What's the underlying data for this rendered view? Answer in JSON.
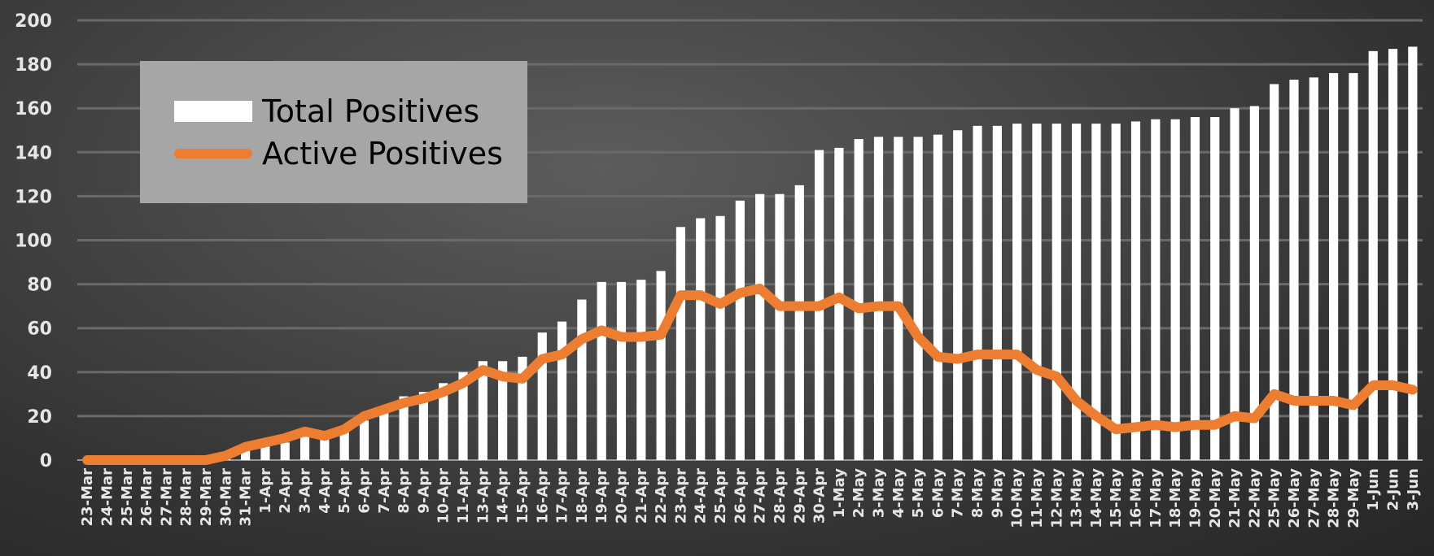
{
  "chart_data": {
    "type": "bar",
    "categories": [
      "23-Mar",
      "24-Mar",
      "25-Mar",
      "26-Mar",
      "27-Mar",
      "28-Mar",
      "29-Mar",
      "30-Mar",
      "31-Mar",
      "1-Apr",
      "2-Apr",
      "3-Apr",
      "4-Apr",
      "5-Apr",
      "6-Apr",
      "7-Apr",
      "8-Apr",
      "9-Apr",
      "10-Apr",
      "11-Apr",
      "13-Apr",
      "14-Apr",
      "15-Apr",
      "16-Apr",
      "17-Apr",
      "18-Apr",
      "19-Apr",
      "20-Apr",
      "21-Apr",
      "22-Apr",
      "23-Apr",
      "24-Apr",
      "25-Apr",
      "26-Apr",
      "27-Apr",
      "28-Apr",
      "29-Apr",
      "30-Apr",
      "1-May",
      "2-May",
      "3-May",
      "4-May",
      "5-May",
      "6-May",
      "7-May",
      "8-May",
      "9-May",
      "10-May",
      "11-May",
      "12-May",
      "13-May",
      "14-May",
      "15-May",
      "16-May",
      "17-May",
      "18-May",
      "19-May",
      "20-May",
      "21-May",
      "22-May",
      "25-May",
      "26-May",
      "27-May",
      "28-May",
      "29-May",
      "1-Jun",
      "2-Jun",
      "3-Jun"
    ],
    "series": [
      {
        "name": "Total Positives",
        "type": "bar",
        "color": "#ffffff",
        "values": [
          0,
          0,
          0,
          0,
          0,
          0,
          0,
          2,
          5,
          7,
          8,
          11,
          12,
          13,
          18,
          23,
          29,
          31,
          35,
          40,
          45,
          45,
          47,
          58,
          63,
          73,
          81,
          81,
          82,
          86,
          106,
          110,
          111,
          118,
          121,
          121,
          125,
          141,
          142,
          146,
          147,
          147,
          147,
          148,
          150,
          152,
          152,
          153,
          153,
          153,
          153,
          153,
          153,
          154,
          155,
          155,
          156,
          156,
          160,
          161,
          171,
          173,
          174,
          176,
          176,
          186,
          187,
          188
        ]
      },
      {
        "name": "Active Positives",
        "type": "line",
        "color": "#ed7d31",
        "values": [
          0,
          0,
          0,
          0,
          0,
          0,
          0,
          2,
          6,
          8,
          10,
          13,
          11,
          14,
          20,
          23,
          26,
          28,
          31,
          35,
          41,
          38,
          37,
          46,
          48,
          55,
          59,
          56,
          56,
          57,
          75,
          75,
          71,
          76,
          78,
          70,
          70,
          70,
          74,
          69,
          70,
          70,
          56,
          47,
          46,
          48,
          48,
          48,
          41,
          38,
          27,
          20,
          14,
          15,
          16,
          15,
          16,
          16,
          20,
          19,
          30,
          27,
          27,
          27,
          25,
          34,
          34,
          32
        ]
      }
    ],
    "ylim": [
      0,
      200
    ],
    "yticks": [
      "0",
      "20",
      "40",
      "60",
      "80",
      "100",
      "120",
      "140",
      "160",
      "180",
      "200"
    ],
    "grid": true,
    "legend_position": "top-left"
  }
}
